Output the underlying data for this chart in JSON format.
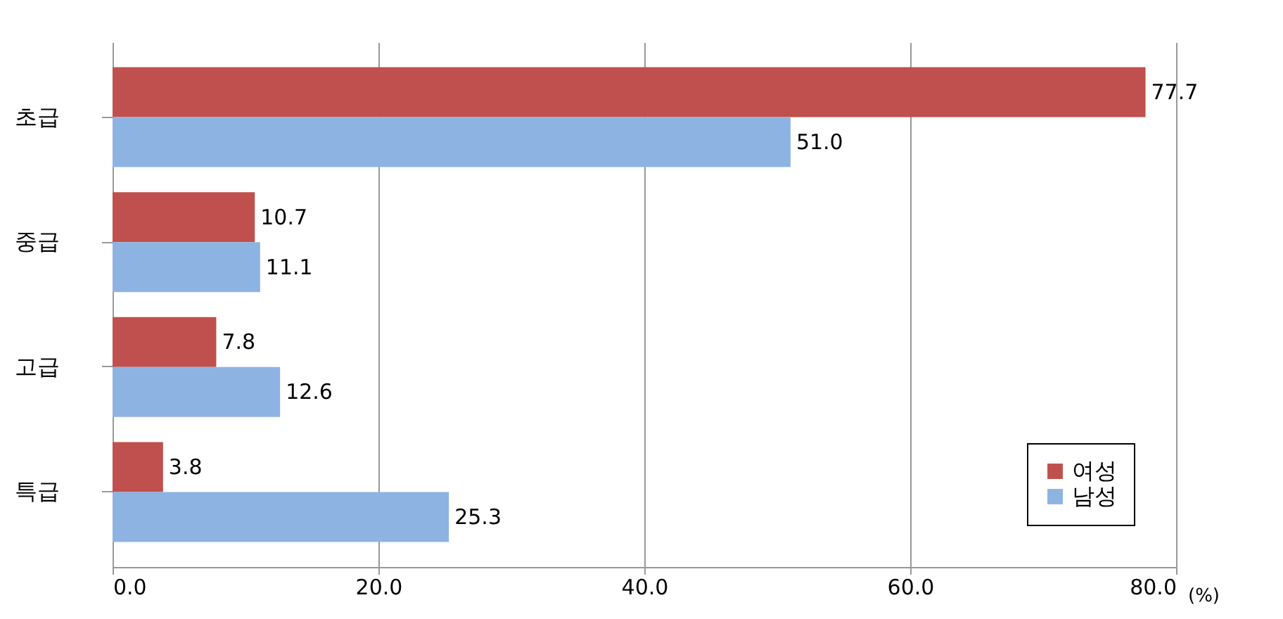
{
  "chart_data": {
    "type": "bar",
    "orientation": "horizontal",
    "categories": [
      "초급",
      "중급",
      "고급",
      "특급"
    ],
    "series": [
      {
        "name": "여성",
        "color": "#c0504d",
        "values": [
          77.7,
          10.7,
          7.8,
          3.8
        ],
        "value_labels": [
          "77.7",
          "10.7",
          "7.8",
          "3.8"
        ]
      },
      {
        "name": "남성",
        "color": "#8db3e2",
        "values": [
          51.0,
          11.1,
          12.6,
          25.3
        ],
        "value_labels": [
          "51.0",
          "11.1",
          "12.6",
          "25.3"
        ]
      }
    ],
    "xlabel": "(%)",
    "xlim": [
      0,
      80
    ],
    "xticks": [
      {
        "value": 0,
        "label": "0.0"
      },
      {
        "value": 20,
        "label": "20.0"
      },
      {
        "value": 40,
        "label": "40.0"
      },
      {
        "value": 60,
        "label": "60.0"
      },
      {
        "value": 80,
        "label": "80.0"
      }
    ],
    "grid": "x",
    "legend": "bottom right"
  }
}
